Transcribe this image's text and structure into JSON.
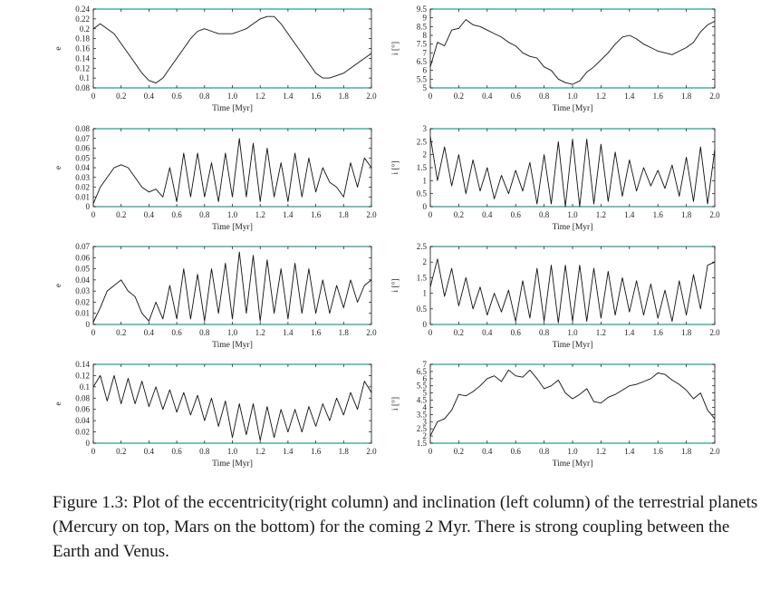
{
  "caption": "Figure 1.3: Plot of the eccentricity(right column) and inclination (left column) of the terrestrial planets (Mercury on top, Mars on the bottom) for the coming 2 Myr. There is strong coupling between the Earth and Venus.",
  "panel_style": {
    "frame_color": "#111111",
    "accent_color": "#2a9d8f",
    "line_color": "#111111"
  },
  "chart_data": [
    {
      "type": "line",
      "xlabel": "Time [Myr]",
      "ylabel": "e",
      "xlim": [
        0,
        2.0
      ],
      "ylim": [
        0.08,
        0.24
      ],
      "xticks": [
        "0",
        "0.2",
        "0.4",
        "0.6",
        "0.8",
        "1.0",
        "1.2",
        "1.4",
        "1.6",
        "1.8",
        "2.0"
      ],
      "yticks": [
        "0.08",
        "0.1",
        "0.12",
        "0.14",
        "0.16",
        "0.18",
        "0.2",
        "0.22",
        "0.24"
      ],
      "series": [
        {
          "x": [
            0,
            0.05,
            0.1,
            0.15,
            0.2,
            0.25,
            0.3,
            0.35,
            0.4,
            0.45,
            0.5,
            0.55,
            0.6,
            0.65,
            0.7,
            0.75,
            0.8,
            0.85,
            0.9,
            0.95,
            1.0,
            1.05,
            1.1,
            1.15,
            1.2,
            1.25,
            1.3,
            1.35,
            1.4,
            1.45,
            1.5,
            1.55,
            1.6,
            1.65,
            1.7,
            1.75,
            1.8,
            1.85,
            1.9,
            1.95,
            2.0
          ],
          "y": [
            0.2,
            0.21,
            0.2,
            0.19,
            0.17,
            0.15,
            0.13,
            0.11,
            0.095,
            0.09,
            0.1,
            0.12,
            0.14,
            0.16,
            0.18,
            0.195,
            0.2,
            0.195,
            0.19,
            0.19,
            0.19,
            0.195,
            0.2,
            0.21,
            0.22,
            0.225,
            0.225,
            0.21,
            0.19,
            0.17,
            0.15,
            0.13,
            0.11,
            0.1,
            0.1,
            0.105,
            0.11,
            0.12,
            0.13,
            0.14,
            0.15
          ]
        }
      ]
    },
    {
      "type": "line",
      "xlabel": "Time [Myr]",
      "ylabel": "i [°]",
      "xlim": [
        0,
        2.0
      ],
      "ylim": [
        5,
        9.5
      ],
      "xticks": [
        "0",
        "0.2",
        "0.4",
        "0.6",
        "0.8",
        "1.0",
        "1.2",
        "1.4",
        "1.6",
        "1.8",
        "2.0"
      ],
      "yticks": [
        "5",
        "5.5",
        "6",
        "6.5",
        "7",
        "7.5",
        "8",
        "8.5",
        "9",
        "9.5"
      ],
      "series": [
        {
          "x": [
            0,
            0.05,
            0.1,
            0.15,
            0.2,
            0.25,
            0.3,
            0.35,
            0.4,
            0.45,
            0.5,
            0.55,
            0.6,
            0.65,
            0.7,
            0.75,
            0.8,
            0.85,
            0.9,
            0.95,
            1.0,
            1.05,
            1.1,
            1.15,
            1.2,
            1.25,
            1.3,
            1.35,
            1.4,
            1.45,
            1.5,
            1.55,
            1.6,
            1.65,
            1.7,
            1.75,
            1.8,
            1.85,
            1.9,
            1.95,
            2.0
          ],
          "y": [
            6.2,
            7.6,
            7.4,
            8.3,
            8.4,
            8.9,
            8.6,
            8.5,
            8.3,
            8.1,
            7.9,
            7.6,
            7.4,
            7.0,
            6.8,
            6.7,
            6.2,
            6.0,
            5.5,
            5.3,
            5.2,
            5.4,
            5.9,
            6.2,
            6.6,
            7.0,
            7.5,
            7.9,
            8.0,
            7.8,
            7.5,
            7.3,
            7.1,
            7.0,
            6.9,
            7.1,
            7.3,
            7.6,
            8.2,
            8.6,
            8.8
          ]
        }
      ]
    },
    {
      "type": "line",
      "xlabel": "Time [Myr]",
      "ylabel": "e",
      "xlim": [
        0,
        2.0
      ],
      "ylim": [
        0,
        0.08
      ],
      "xticks": [
        "0",
        "0.2",
        "0.4",
        "0.6",
        "0.8",
        "1.0",
        "1.2",
        "1.4",
        "1.6",
        "1.8",
        "2.0"
      ],
      "yticks": [
        "0",
        "0.01",
        "0.02",
        "0.03",
        "0.04",
        "0.05",
        "0.06",
        "0.07",
        "0.08"
      ],
      "series": [
        {
          "x": [
            0,
            0.05,
            0.1,
            0.15,
            0.2,
            0.25,
            0.3,
            0.35,
            0.4,
            0.45,
            0.5,
            0.55,
            0.6,
            0.65,
            0.7,
            0.75,
            0.8,
            0.85,
            0.9,
            0.95,
            1.0,
            1.05,
            1.1,
            1.15,
            1.2,
            1.25,
            1.3,
            1.35,
            1.4,
            1.45,
            1.5,
            1.55,
            1.6,
            1.65,
            1.7,
            1.75,
            1.8,
            1.85,
            1.9,
            1.95,
            2.0
          ],
          "y": [
            0.003,
            0.02,
            0.03,
            0.04,
            0.043,
            0.04,
            0.03,
            0.02,
            0.015,
            0.018,
            0.01,
            0.04,
            0.005,
            0.055,
            0.01,
            0.055,
            0.01,
            0.045,
            0.005,
            0.055,
            0.01,
            0.07,
            0.01,
            0.065,
            0.005,
            0.06,
            0.01,
            0.045,
            0.005,
            0.055,
            0.01,
            0.05,
            0.015,
            0.04,
            0.025,
            0.02,
            0.01,
            0.045,
            0.02,
            0.05,
            0.04
          ]
        }
      ]
    },
    {
      "type": "line",
      "xlabel": "Time [Myr]",
      "ylabel": "i [°]",
      "xlim": [
        0,
        2.0
      ],
      "ylim": [
        0,
        3
      ],
      "xticks": [
        "0",
        "0.2",
        "0.4",
        "0.6",
        "0.8",
        "1.0",
        "1.2",
        "1.4",
        "1.6",
        "1.8",
        "2.0"
      ],
      "yticks": [
        "0",
        "0.5",
        "1",
        "1.5",
        "2",
        "2.5",
        "3"
      ],
      "series": [
        {
          "x": [
            0,
            0.05,
            0.1,
            0.15,
            0.2,
            0.25,
            0.3,
            0.35,
            0.4,
            0.45,
            0.5,
            0.55,
            0.6,
            0.65,
            0.7,
            0.75,
            0.8,
            0.85,
            0.9,
            0.95,
            1.0,
            1.05,
            1.1,
            1.15,
            1.2,
            1.25,
            1.3,
            1.35,
            1.4,
            1.45,
            1.5,
            1.55,
            1.6,
            1.65,
            1.7,
            1.75,
            1.8,
            1.85,
            1.9,
            1.95,
            2.0
          ],
          "y": [
            2.7,
            1.0,
            2.3,
            0.8,
            2.0,
            0.5,
            1.8,
            0.6,
            1.5,
            0.3,
            1.2,
            0.5,
            1.4,
            0.6,
            1.7,
            0.1,
            2.0,
            0.1,
            2.5,
            0.0,
            2.6,
            0.0,
            2.6,
            0.1,
            2.4,
            0.2,
            2.1,
            0.4,
            1.8,
            0.6,
            1.5,
            0.8,
            1.4,
            0.7,
            1.6,
            0.4,
            1.9,
            0.2,
            2.3,
            0.1,
            2.2
          ]
        }
      ]
    },
    {
      "type": "line",
      "xlabel": "Time [Myr]",
      "ylabel": "e",
      "xlim": [
        0,
        2.0
      ],
      "ylim": [
        0,
        0.07
      ],
      "xticks": [
        "0",
        "0.2",
        "0.4",
        "0.6",
        "0.8",
        "1.0",
        "1.2",
        "1.4",
        "1.6",
        "1.8",
        "2.0"
      ],
      "yticks": [
        "0",
        "0.01",
        "0.02",
        "0.03",
        "0.04",
        "0.05",
        "0.06",
        "0.07"
      ],
      "series": [
        {
          "x": [
            0,
            0.05,
            0.1,
            0.15,
            0.2,
            0.25,
            0.3,
            0.35,
            0.4,
            0.45,
            0.5,
            0.55,
            0.6,
            0.65,
            0.7,
            0.75,
            0.8,
            0.85,
            0.9,
            0.95,
            1.0,
            1.05,
            1.1,
            1.15,
            1.2,
            1.25,
            1.3,
            1.35,
            1.4,
            1.45,
            1.5,
            1.55,
            1.6,
            1.65,
            1.7,
            1.75,
            1.8,
            1.85,
            1.9,
            1.95,
            2.0
          ],
          "y": [
            0.002,
            0.015,
            0.03,
            0.035,
            0.04,
            0.03,
            0.025,
            0.01,
            0.003,
            0.02,
            0.005,
            0.035,
            0.005,
            0.05,
            0.005,
            0.045,
            0.003,
            0.05,
            0.01,
            0.055,
            0.005,
            0.065,
            0.01,
            0.062,
            0.003,
            0.058,
            0.01,
            0.05,
            0.005,
            0.055,
            0.01,
            0.05,
            0.01,
            0.04,
            0.01,
            0.035,
            0.015,
            0.04,
            0.02,
            0.035,
            0.04
          ]
        }
      ]
    },
    {
      "type": "line",
      "xlabel": "Time [Myr]",
      "ylabel": "i [°]",
      "xlim": [
        0,
        2.0
      ],
      "ylim": [
        0,
        2.5
      ],
      "xticks": [
        "0",
        "0.2",
        "0.4",
        "0.6",
        "0.8",
        "1.0",
        "1.2",
        "1.4",
        "1.6",
        "1.8",
        "2.0"
      ],
      "yticks": [
        "0",
        "0.5",
        "1",
        "1.5",
        "2",
        "2.5"
      ],
      "series": [
        {
          "x": [
            0,
            0.05,
            0.1,
            0.15,
            0.2,
            0.25,
            0.3,
            0.35,
            0.4,
            0.45,
            0.5,
            0.55,
            0.6,
            0.65,
            0.7,
            0.75,
            0.8,
            0.85,
            0.9,
            0.95,
            1.0,
            1.05,
            1.1,
            1.15,
            1.2,
            1.25,
            1.3,
            1.35,
            1.4,
            1.45,
            1.5,
            1.55,
            1.6,
            1.65,
            1.7,
            1.75,
            1.8,
            1.85,
            1.9,
            1.95,
            2.0
          ],
          "y": [
            1.2,
            2.1,
            0.9,
            1.8,
            0.6,
            1.5,
            0.5,
            1.2,
            0.3,
            1.0,
            0.4,
            1.1,
            0.1,
            1.4,
            0.2,
            1.8,
            0.1,
            1.9,
            0.05,
            1.9,
            0.1,
            1.9,
            0.1,
            1.8,
            0.2,
            1.7,
            0.3,
            1.5,
            0.4,
            1.4,
            0.3,
            1.3,
            0.2,
            1.1,
            0.1,
            1.4,
            0.3,
            1.6,
            0.5,
            1.9,
            2.0
          ]
        }
      ]
    },
    {
      "type": "line",
      "xlabel": "Time [Myr]",
      "ylabel": "e",
      "xlim": [
        0,
        2.0
      ],
      "ylim": [
        0,
        0.14
      ],
      "xticks": [
        "0",
        "0.2",
        "0.4",
        "0.6",
        "0.8",
        "1.0",
        "1.2",
        "1.4",
        "1.6",
        "1.8",
        "2.0"
      ],
      "yticks": [
        "0",
        "0.02",
        "0.04",
        "0.06",
        "0.08",
        "0.1",
        "0.12",
        "0.14"
      ],
      "series": [
        {
          "x": [
            0,
            0.05,
            0.1,
            0.15,
            0.2,
            0.25,
            0.3,
            0.35,
            0.4,
            0.45,
            0.5,
            0.55,
            0.6,
            0.65,
            0.7,
            0.75,
            0.8,
            0.85,
            0.9,
            0.95,
            1.0,
            1.05,
            1.1,
            1.15,
            1.2,
            1.25,
            1.3,
            1.35,
            1.4,
            1.45,
            1.5,
            1.55,
            1.6,
            1.65,
            1.7,
            1.75,
            1.8,
            1.85,
            1.9,
            1.95,
            2.0
          ],
          "y": [
            0.1,
            0.12,
            0.075,
            0.12,
            0.07,
            0.115,
            0.07,
            0.11,
            0.065,
            0.1,
            0.06,
            0.095,
            0.055,
            0.09,
            0.05,
            0.085,
            0.04,
            0.08,
            0.03,
            0.075,
            0.01,
            0.07,
            0.015,
            0.07,
            0.005,
            0.065,
            0.01,
            0.06,
            0.02,
            0.06,
            0.02,
            0.065,
            0.03,
            0.07,
            0.04,
            0.08,
            0.05,
            0.09,
            0.06,
            0.11,
            0.09
          ]
        }
      ]
    },
    {
      "type": "line",
      "xlabel": "Time [Myr]",
      "ylabel": "i [°]",
      "xlim": [
        0,
        2.0
      ],
      "ylim": [
        1.5,
        7
      ],
      "xticks": [
        "0",
        "0.2",
        "0.4",
        "0.6",
        "0.8",
        "1.0",
        "1.2",
        "1.4",
        "1.6",
        "1.8",
        "2.0"
      ],
      "yticks": [
        "1.5",
        "2",
        "2.5",
        "3",
        "3.5",
        "4",
        "4.5",
        "5",
        "5.5",
        "6",
        "6.5",
        "7"
      ],
      "series": [
        {
          "x": [
            0,
            0.05,
            0.1,
            0.15,
            0.2,
            0.25,
            0.3,
            0.35,
            0.4,
            0.45,
            0.5,
            0.55,
            0.6,
            0.65,
            0.7,
            0.75,
            0.8,
            0.85,
            0.9,
            0.95,
            1.0,
            1.05,
            1.1,
            1.15,
            1.2,
            1.25,
            1.3,
            1.35,
            1.4,
            1.45,
            1.5,
            1.55,
            1.6,
            1.65,
            1.7,
            1.75,
            1.8,
            1.85,
            1.9,
            1.95,
            2.0
          ],
          "y": [
            2.0,
            3.0,
            3.2,
            3.8,
            4.9,
            4.8,
            5.1,
            5.5,
            6.0,
            6.2,
            5.8,
            6.6,
            6.2,
            6.1,
            6.6,
            6.0,
            5.3,
            5.5,
            5.9,
            5.0,
            4.6,
            4.9,
            5.3,
            4.4,
            4.3,
            4.7,
            4.9,
            5.2,
            5.5,
            5.6,
            5.8,
            6.0,
            6.4,
            6.3,
            5.9,
            5.6,
            5.2,
            4.6,
            5.0,
            3.8,
            3.2
          ]
        }
      ]
    }
  ]
}
